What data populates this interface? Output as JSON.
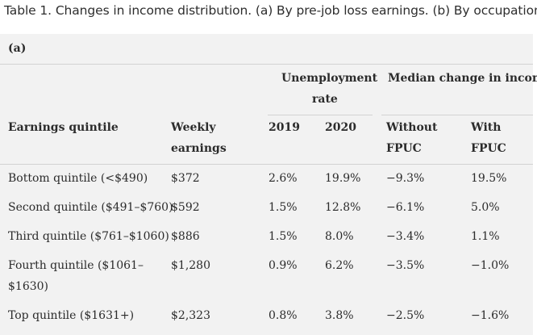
{
  "caption": "Table 1. Changes in income distribution. (a) By pre-job loss earnings. (b) By occupation.",
  "part_label": "(a)",
  "headers": {
    "unemployment_line1": "Unemployment",
    "unemployment_line2": "rate",
    "median_change": "Median change in income",
    "quintile": "Earnings quintile",
    "weekly_line1": "Weekly",
    "weekly_line2": "earnings",
    "year_2019": "2019",
    "year_2020": "2020",
    "without_line1": "Without",
    "without_line2": "FPUC",
    "with_line1": "With",
    "with_line2": "FPUC"
  },
  "rows": [
    {
      "quintile_line1": "Bottom quintile (<$490)",
      "quintile_line2": "",
      "weekly": "$372",
      "rate2019": "2.6%",
      "rate2020": "19.9%",
      "without": "−9.3%",
      "with": "19.5%"
    },
    {
      "quintile_line1": "Second quintile ($491–$760)",
      "quintile_line2": "",
      "weekly": "$592",
      "rate2019": "1.5%",
      "rate2020": "12.8%",
      "without": "−6.1%",
      "with": "5.0%"
    },
    {
      "quintile_line1": "Third quintile ($761–$1060)",
      "quintile_line2": "",
      "weekly": "$886",
      "rate2019": "1.5%",
      "rate2020": "8.0%",
      "without": "−3.4%",
      "with": "1.1%"
    },
    {
      "quintile_line1": "Fourth quintile ($1061–",
      "quintile_line2": "$1630)",
      "weekly": "$1,280",
      "rate2019": "0.9%",
      "rate2020": "6.2%",
      "without": "−3.5%",
      "with": "−1.0%"
    },
    {
      "quintile_line1": "Top quintile ($1631+)",
      "quintile_line2": "",
      "weekly": "$2,323",
      "rate2019": "0.8%",
      "rate2020": "3.8%",
      "without": "−2.5%",
      "with": "−1.6%"
    }
  ]
}
